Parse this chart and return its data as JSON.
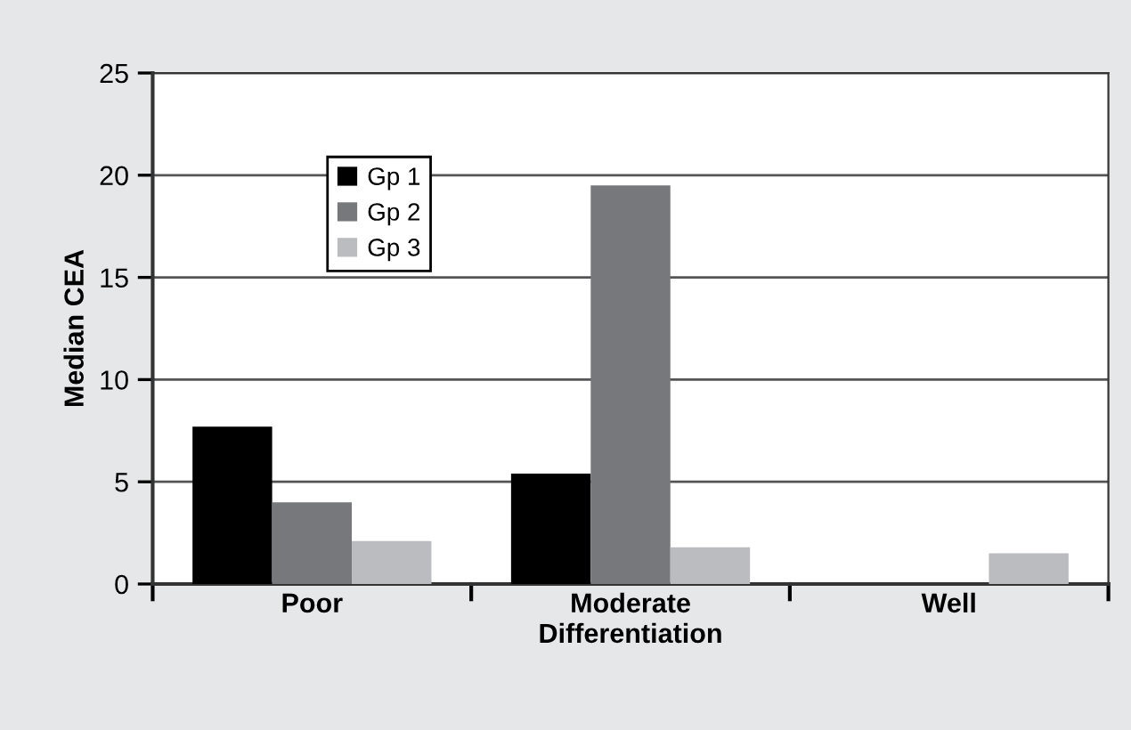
{
  "chart_data": {
    "type": "bar",
    "xlabel": "Differentiation",
    "ylabel": "Median CEA",
    "categories": [
      "Poor",
      "Moderate",
      "Well"
    ],
    "series": [
      {
        "name": "Gp 1",
        "color": "#000000",
        "values": [
          7.7,
          5.4,
          null
        ]
      },
      {
        "name": "Gp 2",
        "color": "#77787b",
        "values": [
          4.0,
          19.5,
          null
        ]
      },
      {
        "name": "Gp 3",
        "color": "#bbbcbf",
        "values": [
          2.1,
          1.8,
          1.5
        ]
      }
    ],
    "ylim": [
      0,
      25
    ],
    "yticks": [
      0,
      5,
      10,
      15,
      20,
      25
    ],
    "grid": "y",
    "legend": "top left"
  }
}
